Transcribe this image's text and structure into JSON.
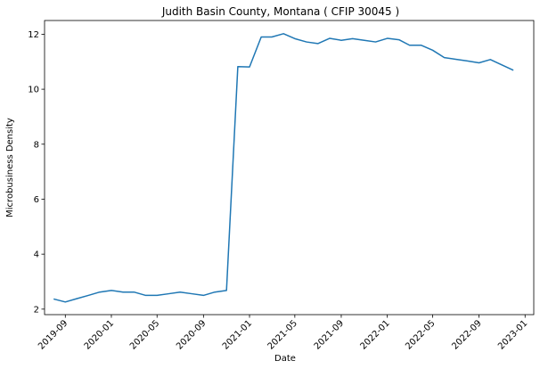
{
  "chart_data": {
    "type": "line",
    "title": "Judith Basin County, Montana ( CFIP 30045 )",
    "xlabel": "Date",
    "ylabel": "Microbusiness Density",
    "color": "#1f77b4",
    "grid": false,
    "xlim": [
      "2019-07-08",
      "2023-01-24"
    ],
    "ylim": [
      1.8,
      12.5
    ],
    "x_ticks": [
      "2019-09",
      "2020-01",
      "2020-05",
      "2020-09",
      "2021-01",
      "2021-05",
      "2021-09",
      "2022-01",
      "2022-05",
      "2022-09",
      "2023-01"
    ],
    "y_ticks": [
      2,
      4,
      6,
      8,
      10,
      12
    ],
    "series": [
      {
        "x": [
          "2019-08-01",
          "2019-09-01",
          "2019-10-01",
          "2019-11-01",
          "2019-12-01",
          "2020-01-01",
          "2020-02-01",
          "2020-03-01",
          "2020-04-01",
          "2020-05-01",
          "2020-06-01",
          "2020-07-01",
          "2020-08-01",
          "2020-09-01",
          "2020-10-01",
          "2020-11-01",
          "2020-12-01",
          "2021-01-01",
          "2021-02-01",
          "2021-03-01",
          "2021-04-01",
          "2021-05-01",
          "2021-06-01",
          "2021-07-01",
          "2021-08-01",
          "2021-09-01",
          "2021-10-01",
          "2021-11-01",
          "2021-12-01",
          "2022-01-01",
          "2022-02-01",
          "2022-03-01",
          "2022-04-01",
          "2022-05-01",
          "2022-06-01",
          "2022-07-01",
          "2022-08-01",
          "2022-09-01",
          "2022-10-01",
          "2022-11-01",
          "2022-12-01"
        ],
        "y": [
          2.37,
          2.26,
          2.38,
          2.5,
          2.62,
          2.68,
          2.62,
          2.62,
          2.5,
          2.5,
          2.56,
          2.62,
          2.56,
          2.5,
          2.62,
          2.68,
          10.82,
          10.81,
          11.9,
          11.9,
          12.02,
          11.84,
          11.72,
          11.66,
          11.85,
          11.78,
          11.84,
          11.78,
          11.72,
          11.85,
          11.8,
          11.6,
          11.6,
          11.42,
          11.15,
          11.09,
          11.03,
          10.96,
          11.08,
          10.88,
          10.69
        ]
      }
    ]
  }
}
